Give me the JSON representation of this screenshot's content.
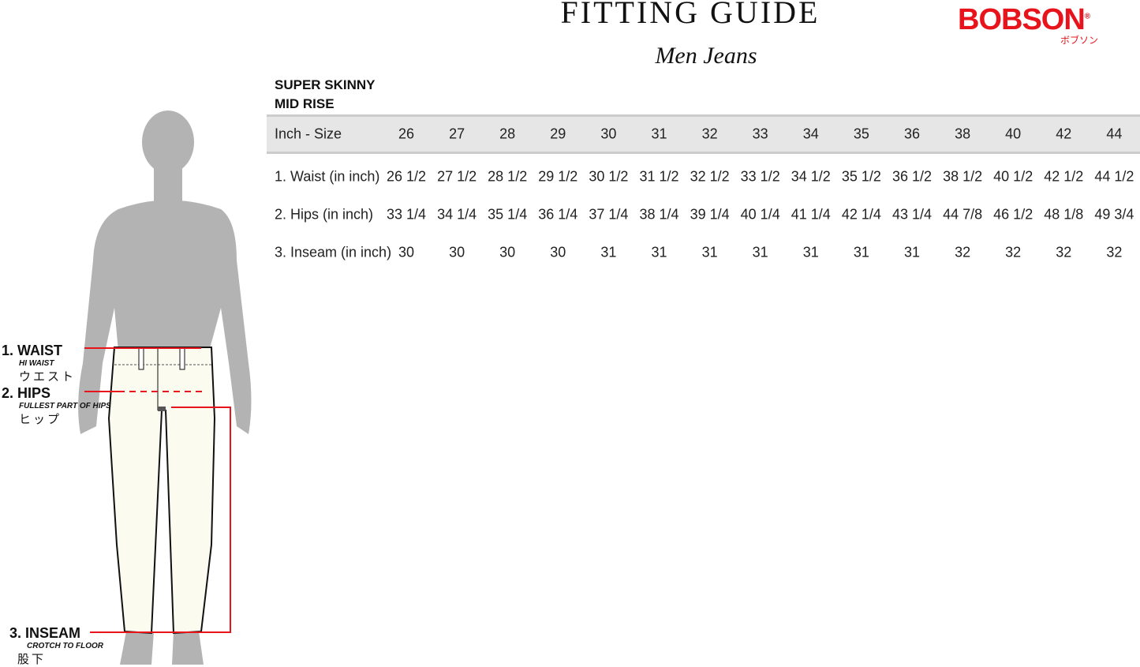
{
  "header": {
    "title": "FITTING GUIDE",
    "subtitle": "Men Jeans",
    "logo": "BOBSON",
    "logo_kana": "ボブソン"
  },
  "fit": {
    "line1": "SUPER SKINNY",
    "line2": "MID RISE"
  },
  "table": {
    "header_label": "Inch - Size",
    "sizes": [
      "26",
      "27",
      "28",
      "29",
      "30",
      "31",
      "32",
      "33",
      "34",
      "35",
      "36",
      "38",
      "40",
      "42",
      "44"
    ],
    "rows": [
      {
        "label": "1. Waist (in inch)",
        "values": [
          "26 1/2",
          "27 1/2",
          "28 1/2",
          "29 1/2",
          "30 1/2",
          "31 1/2",
          "32 1/2",
          "33 1/2",
          "34 1/2",
          "35 1/2",
          "36 1/2",
          "38 1/2",
          "40 1/2",
          "42 1/2",
          "44 1/2"
        ]
      },
      {
        "label": "2. Hips (in inch)",
        "values": [
          "33 1/4",
          "34 1/4",
          "35 1/4",
          "36 1/4",
          "37 1/4",
          "38 1/4",
          "39 1/4",
          "40 1/4",
          "41 1/4",
          "42 1/4",
          "43 1/4",
          "44 7/8",
          "46 1/2",
          "48 1/8",
          "49 3/4"
        ]
      },
      {
        "label": "3. Inseam (in inch)",
        "values": [
          "30",
          "30",
          "30",
          "30",
          "31",
          "31",
          "31",
          "31",
          "31",
          "31",
          "31",
          "32",
          "32",
          "32",
          "32"
        ]
      }
    ]
  },
  "measures": [
    {
      "label": "1. WAIST",
      "sub": "HI WAIST",
      "jp": "ウエスト"
    },
    {
      "label": "2. HIPS",
      "sub": "FULLEST PART OF HIPS",
      "jp": "ヒップ"
    },
    {
      "label": "3. INSEAM",
      "sub": "CROTCH TO FLOOR",
      "jp": "股下"
    }
  ],
  "colors": {
    "brand": "#e8141b",
    "measure_line": "#e8141b",
    "silhouette": "#b3b3b3",
    "jeans": "#fbfbf0"
  }
}
